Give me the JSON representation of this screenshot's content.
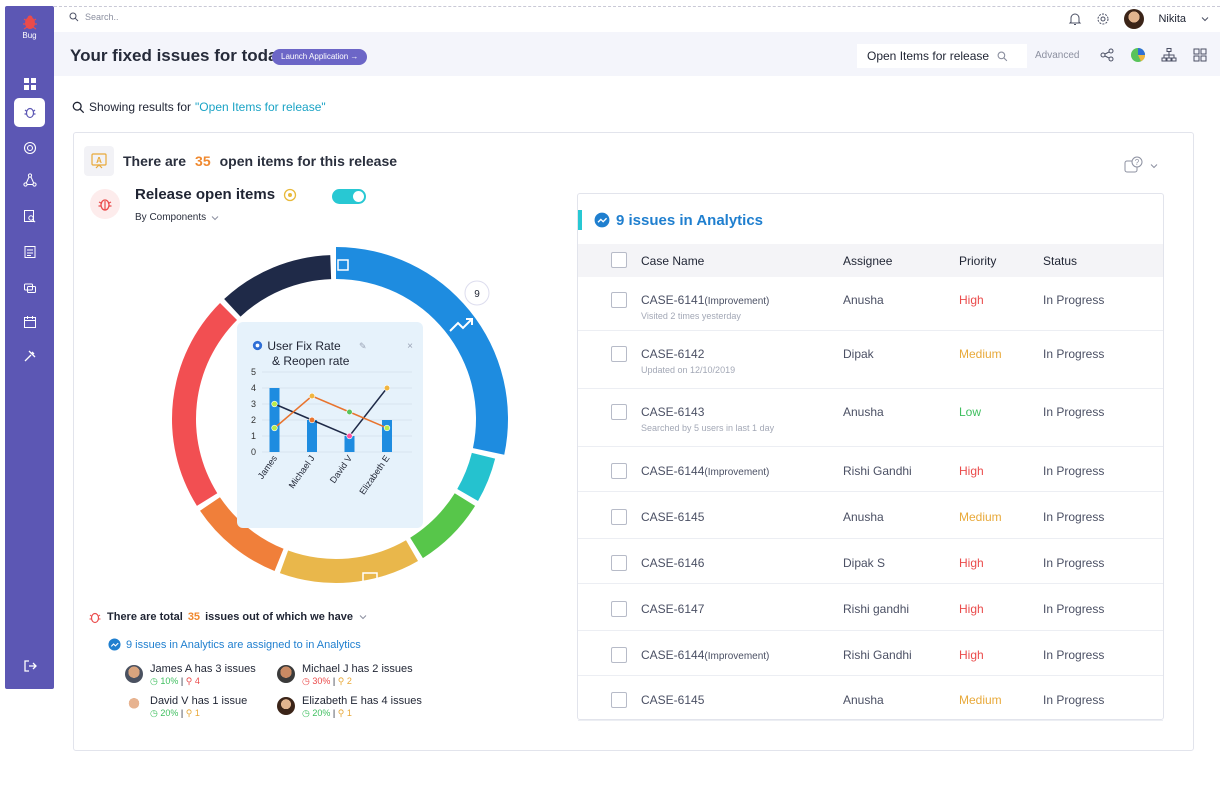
{
  "app": {
    "logo_text": "Bug"
  },
  "topbar": {
    "search_placeholder": "Search..",
    "user_name": "Nikita"
  },
  "header": {
    "title": "Your fixed issues for today",
    "launch_button": "Launch Application →",
    "filter_value": "Open Items for release",
    "advanced_label": "Advanced"
  },
  "results": {
    "prefix": "Showing results for",
    "query": "\"Open Items for release\""
  },
  "summary": {
    "pre": "There are",
    "count": "35",
    "post": "open items for this release"
  },
  "release": {
    "title": "Release open items",
    "group_by": "By Components",
    "toggle_on": true
  },
  "donut": {
    "segment_badge": "9"
  },
  "popup": {
    "title_line1": "User Fix Rate",
    "title_line2": "& Reopen rate",
    "close": "×",
    "y_ticks": [
      "5",
      "4",
      "3",
      "2",
      "1",
      "0"
    ],
    "chart_data": {
      "type": "bar",
      "categories": [
        "James",
        "Michael J",
        "David V",
        "Elizabeth E"
      ],
      "series": [
        {
          "name": "",
          "type": "bar",
          "values": [
            4,
            2,
            1,
            2
          ]
        },
        {
          "name": "",
          "type": "line",
          "values": [
            3,
            2,
            1,
            4
          ]
        },
        {
          "name": "",
          "type": "line",
          "values": [
            1.5,
            3.5,
            2.5,
            1.5
          ]
        }
      ],
      "ylim": [
        0,
        5
      ]
    }
  },
  "totals": {
    "pre": "There are total",
    "count": "35",
    "post": "issues out of which we have"
  },
  "analytics_line": "9 issues in Analytics are assigned to in Analytics",
  "people": [
    {
      "name": "James A has 3 issues",
      "pct": "10%",
      "count": "4",
      "pct_color": "green"
    },
    {
      "name": "Michael J has 2 issues",
      "pct": "30%",
      "count": "2",
      "pct_color": "red"
    },
    {
      "name": "David V  has 1 issue",
      "pct": "20%",
      "count": "1",
      "pct_color": "green"
    },
    {
      "name": "Elizabeth E has 4 issues",
      "pct": "20%",
      "count": "1",
      "pct_color": "green"
    }
  ],
  "table": {
    "title": "9 issues in Analytics",
    "headers": [
      "Case Name",
      "Assignee",
      "Priority",
      "Status"
    ],
    "rows": [
      {
        "case": "CASE-6141",
        "tag": "(Improvement)",
        "sub": "Visited 2 times yesterday",
        "assignee": "Anusha",
        "priority": "High",
        "status": "In Progress"
      },
      {
        "case": "CASE-6142",
        "tag": "",
        "sub": "Updated on 12/10/2019",
        "assignee": "Dipak",
        "priority": "Medium",
        "status": "In Progress"
      },
      {
        "case": "CASE-6143",
        "tag": "",
        "sub": "Searched by 5 users in last 1 day",
        "assignee": "Anusha",
        "priority": "Low",
        "status": "In Progress"
      },
      {
        "case": "CASE-6144",
        "tag": "(Improvement)",
        "sub": "",
        "assignee": "Rishi Gandhi",
        "priority": "High",
        "status": "In Progress"
      },
      {
        "case": "CASE-6145",
        "tag": "",
        "sub": "",
        "assignee": "Anusha",
        "priority": "Medium",
        "status": "In Progress"
      },
      {
        "case": "CASE-6146",
        "tag": "",
        "sub": "",
        "assignee": "Dipak S",
        "priority": "High",
        "status": "In Progress"
      },
      {
        "case": "CASE-6147",
        "tag": "",
        "sub": "",
        "assignee": "Rishi gandhi",
        "priority": "High",
        "status": "In Progress"
      },
      {
        "case": "CASE-6144",
        "tag": "(Improvement)",
        "sub": "",
        "assignee": "Rishi Gandhi",
        "priority": "High",
        "status": "In Progress"
      },
      {
        "case": "CASE-6145",
        "tag": "",
        "sub": "",
        "assignee": "Anusha",
        "priority": "Medium",
        "status": "In Progress"
      }
    ]
  }
}
